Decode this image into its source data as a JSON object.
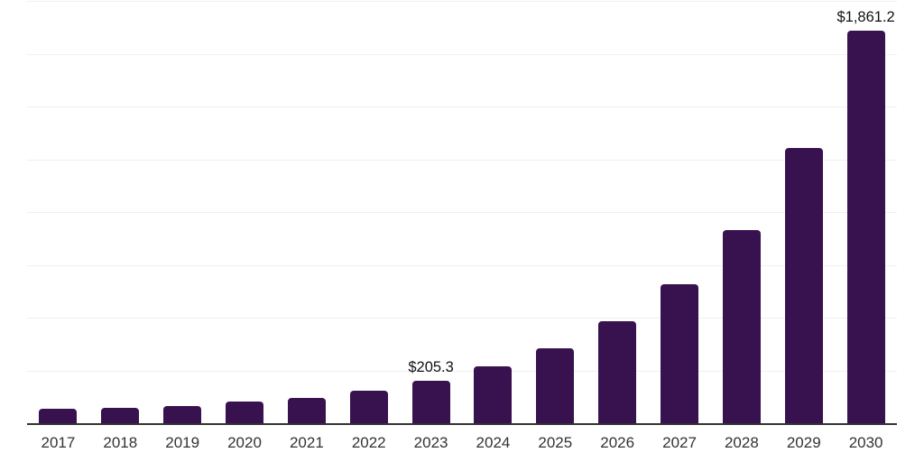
{
  "chart_data": {
    "type": "bar",
    "title": "",
    "xlabel": "",
    "ylabel": "",
    "categories": [
      "2017",
      "2018",
      "2019",
      "2020",
      "2021",
      "2022",
      "2023",
      "2024",
      "2025",
      "2026",
      "2027",
      "2028",
      "2029",
      "2030"
    ],
    "values": [
      73,
      79,
      86,
      107,
      123,
      158,
      205.3,
      272,
      360,
      486,
      664,
      920,
      1306,
      1861.2
    ],
    "data_labels": [
      "",
      "",
      "",
      "",
      "",
      "",
      "$205.3",
      "",
      "",
      "",
      "",
      "",
      "",
      "$1,861.2"
    ],
    "ylim": [
      0,
      2000
    ],
    "gridline_step": 250,
    "grid": true,
    "legend": false,
    "y_axis_labels_visible": false,
    "bar_color": "#38114F",
    "axis_line_color": "#333333",
    "gridline_color": "#f0f0f0",
    "tick_label_color": "#333333",
    "data_label_color": "#111111",
    "background_color": "#ffffff"
  }
}
